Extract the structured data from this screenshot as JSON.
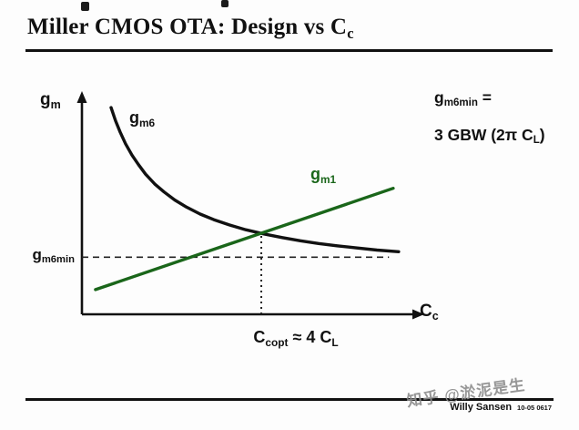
{
  "slide": {
    "title": {
      "main": "Miller CMOS OTA: Design vs C",
      "sub": "c"
    },
    "footer": {
      "credit": "Willy Sansen",
      "date_code": "10-05 0617"
    },
    "watermark": "知乎 @淤泥是生"
  },
  "labels": {
    "y_axis": {
      "base": "g",
      "sub": "m"
    },
    "x_axis": {
      "base": "C",
      "sub": "c"
    },
    "gm6": {
      "base": "g",
      "sub": "m6"
    },
    "gm1": {
      "base": "g",
      "sub": "m1"
    },
    "gm6min": {
      "base": "g",
      "sub": "m6min"
    },
    "ccopt": {
      "base": "C",
      "sub": "copt",
      "mid": " ≈ 4 C",
      "sub2": "L"
    }
  },
  "formula": {
    "lhs_base": "g",
    "lhs_sub": "m6min",
    "lhs_eq": " =",
    "rhs_pre": "3 GBW (2π C",
    "rhs_sub": "L",
    "rhs_post": ")"
  },
  "colors": {
    "gm6_curve": "#111111",
    "gm1_line": "#1a661a",
    "reference": "#222222"
  },
  "chart_data": {
    "type": "line",
    "title": "Miller CMOS OTA: Design vs Cc",
    "xlabel": "Cc",
    "ylabel": "gm",
    "axes": "qualitative (no numeric ticks); normalized coordinates 0-1, y=0 at x-axis",
    "grid": false,
    "legend": "inline labels on curves (gm6 black, gm1 green)",
    "series": [
      {
        "name": "gm6",
        "color": "#111111",
        "style": "solid",
        "shape": "decreasing hyperbola approaching gm6min asymptote",
        "points": [
          [
            0.09,
            0.978
          ],
          [
            0.104,
            0.916
          ],
          [
            0.118,
            0.863
          ],
          [
            0.135,
            0.807
          ],
          [
            0.155,
            0.753
          ],
          [
            0.175,
            0.708
          ],
          [
            0.197,
            0.663
          ],
          [
            0.225,
            0.617
          ],
          [
            0.254,
            0.579
          ],
          [
            0.287,
            0.541
          ],
          [
            0.324,
            0.507
          ],
          [
            0.366,
            0.474
          ],
          [
            0.408,
            0.448
          ],
          [
            0.456,
            0.423
          ],
          [
            0.507,
            0.4
          ],
          [
            0.563,
            0.38
          ],
          [
            0.62,
            0.363
          ],
          [
            0.676,
            0.348
          ],
          [
            0.732,
            0.335
          ],
          [
            0.789,
            0.324
          ],
          [
            0.845,
            0.315
          ],
          [
            0.913,
            0.304
          ],
          [
            0.98,
            0.296
          ]
        ]
      },
      {
        "name": "gm1",
        "color": "#1a661a",
        "style": "solid",
        "shape": "increasing straight line",
        "points": [
          [
            0.042,
            0.117
          ],
          [
            0.963,
            0.596
          ]
        ]
      }
    ],
    "reference_lines": [
      {
        "name": "gm6min_level",
        "orientation": "horizontal",
        "value_norm": 0.27,
        "x_extent_norm": [
          0,
          0.95
        ],
        "style": "dashed",
        "label": "gm6min"
      },
      {
        "name": "ccopt",
        "orientation": "vertical",
        "value_norm": 0.555,
        "y_extent_norm": [
          0,
          0.383
        ],
        "style": "dotted",
        "label": "Ccopt ≈ 4 CL"
      }
    ],
    "key_points": {
      "intersection_norm": [
        0.555,
        0.383
      ],
      "relationships": [
        "gm6min = 3 GBW (2π CL)",
        "Ccopt ≈ 4 CL"
      ]
    }
  }
}
